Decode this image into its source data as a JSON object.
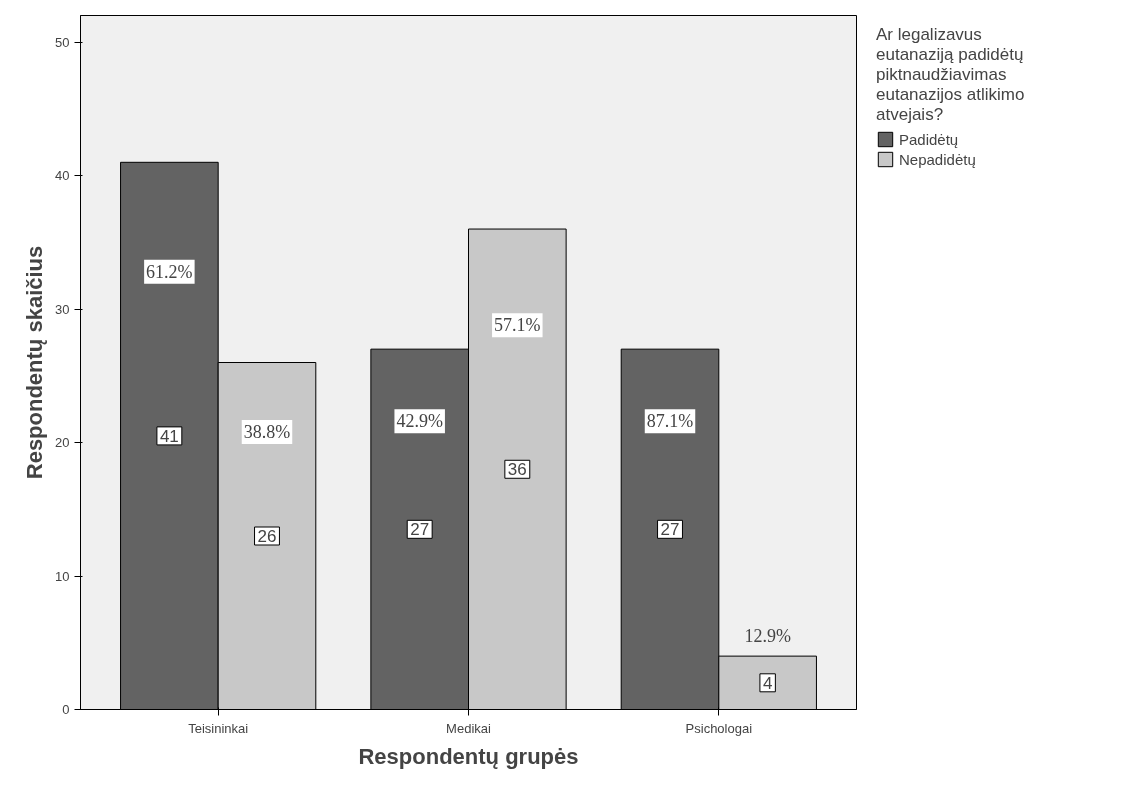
{
  "chart_data": {
    "type": "bar",
    "xlabel": "Respondentų grupės",
    "ylabel": "Respondentų skaičius",
    "legend_title": "Ar legalizavus eutanaziją padidėtų piktnaudžiavimas eutanazijos atlikimo atvejais?",
    "categories": [
      "Teisininkai",
      "Medikai",
      "Psichologai"
    ],
    "series": [
      {
        "name": "Padidėtų",
        "color": "#636363",
        "values": [
          41,
          27,
          27
        ]
      },
      {
        "name": "Nepadidėtų",
        "color": "#c8c8c8",
        "values": [
          26,
          36,
          4
        ]
      }
    ],
    "annotations": [
      "61.2%",
      "42.9%",
      "87.1%",
      "38.8%",
      "57.1%",
      "12.9%"
    ],
    "ylim": [
      0,
      52
    ],
    "yticks": [
      0,
      10,
      20,
      30,
      40,
      50
    ],
    "data_labels": true,
    "grid": false,
    "legend": "top right"
  }
}
